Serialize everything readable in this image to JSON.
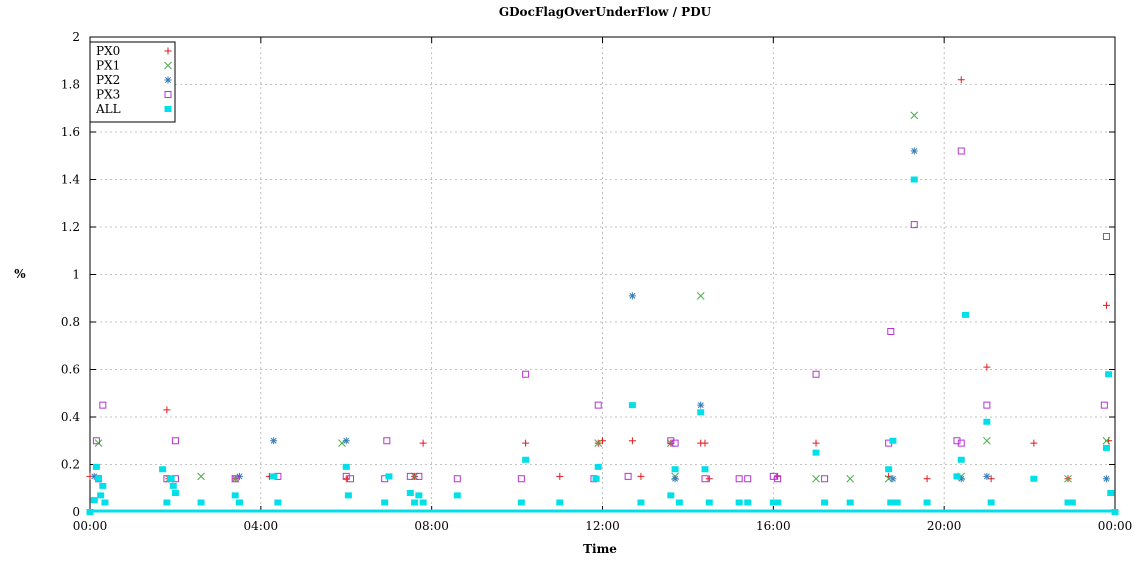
{
  "chart_data": {
    "type": "scatter",
    "title": "GDocFlagOverUnderFlow / PDU",
    "xlabel": "Time",
    "ylabel": "%",
    "xlim_hours": [
      0,
      24
    ],
    "ylim": [
      0,
      2
    ],
    "x_ticks": [
      "00:00",
      "04:00",
      "08:00",
      "12:00",
      "16:00",
      "20:00",
      "00:00"
    ],
    "y_ticks": [
      "0",
      "0.2",
      "0.4",
      "0.6",
      "0.8",
      "1",
      "1.2",
      "1.4",
      "1.6",
      "1.8",
      "2"
    ],
    "grid": true,
    "legend_position": "top-left",
    "series": [
      {
        "name": "PX0",
        "marker": "plus",
        "color": "#e41a1c",
        "points": [
          [
            0.0,
            0.15
          ],
          [
            0.2,
            0.14
          ],
          [
            1.8,
            0.43
          ],
          [
            1.85,
            0.14
          ],
          [
            3.4,
            0.14
          ],
          [
            4.2,
            0.15
          ],
          [
            6.0,
            0.14
          ],
          [
            7.6,
            0.15
          ],
          [
            7.8,
            0.29
          ],
          [
            10.2,
            0.29
          ],
          [
            11.0,
            0.15
          ],
          [
            11.9,
            0.29
          ],
          [
            12.0,
            0.3
          ],
          [
            12.7,
            0.3
          ],
          [
            12.9,
            0.15
          ],
          [
            13.6,
            0.29
          ],
          [
            14.3,
            0.29
          ],
          [
            14.4,
            0.29
          ],
          [
            14.5,
            0.14
          ],
          [
            16.1,
            0.15
          ],
          [
            17.0,
            0.29
          ],
          [
            18.7,
            0.15
          ],
          [
            19.6,
            0.14
          ],
          [
            20.4,
            1.82
          ],
          [
            21.0,
            0.61
          ],
          [
            21.1,
            0.14
          ],
          [
            22.1,
            0.29
          ],
          [
            22.9,
            0.14
          ],
          [
            23.8,
            0.87
          ],
          [
            23.85,
            0.3
          ]
        ]
      },
      {
        "name": "PX1",
        "marker": "x",
        "color": "#4daf4a",
        "points": [
          [
            0.2,
            0.29
          ],
          [
            1.85,
            0.14
          ],
          [
            2.6,
            0.15
          ],
          [
            3.4,
            0.14
          ],
          [
            5.9,
            0.29
          ],
          [
            7.6,
            0.15
          ],
          [
            11.9,
            0.29
          ],
          [
            13.6,
            0.29
          ],
          [
            13.7,
            0.15
          ],
          [
            14.3,
            0.91
          ],
          [
            17.0,
            0.14
          ],
          [
            17.8,
            0.14
          ],
          [
            18.7,
            0.14
          ],
          [
            19.3,
            1.67
          ],
          [
            20.4,
            0.15
          ],
          [
            21.0,
            0.3
          ],
          [
            22.9,
            0.14
          ],
          [
            23.8,
            0.3
          ]
        ]
      },
      {
        "name": "PX2",
        "marker": "star",
        "color": "#377eb8",
        "points": [
          [
            0.1,
            0.15
          ],
          [
            3.5,
            0.15
          ],
          [
            4.3,
            0.3
          ],
          [
            6.0,
            0.3
          ],
          [
            12.7,
            0.91
          ],
          [
            13.7,
            0.14
          ],
          [
            14.3,
            0.45
          ],
          [
            18.8,
            0.14
          ],
          [
            19.3,
            1.52
          ],
          [
            20.4,
            0.14
          ],
          [
            21.0,
            0.15
          ],
          [
            23.8,
            0.14
          ]
        ]
      },
      {
        "name": "PX3",
        "marker": "square",
        "color": "#b833d6",
        "points": [
          [
            0.15,
            0.3
          ],
          [
            0.2,
            0.14
          ],
          [
            0.3,
            0.45
          ],
          [
            1.8,
            0.14
          ],
          [
            2.0,
            0.14
          ],
          [
            2.0,
            0.3
          ],
          [
            3.4,
            0.14
          ],
          [
            4.4,
            0.15
          ],
          [
            6.0,
            0.15
          ],
          [
            6.1,
            0.14
          ],
          [
            6.9,
            0.14
          ],
          [
            6.95,
            0.3
          ],
          [
            7.5,
            0.15
          ],
          [
            7.7,
            0.15
          ],
          [
            8.6,
            0.14
          ],
          [
            10.1,
            0.14
          ],
          [
            10.2,
            0.58
          ],
          [
            11.9,
            0.45
          ],
          [
            11.8,
            0.14
          ],
          [
            12.6,
            0.15
          ],
          [
            13.6,
            0.3
          ],
          [
            13.7,
            0.29
          ],
          [
            14.4,
            0.14
          ],
          [
            15.2,
            0.14
          ],
          [
            15.4,
            0.14
          ],
          [
            16.0,
            0.15
          ],
          [
            16.1,
            0.14
          ],
          [
            17.0,
            0.58
          ],
          [
            17.2,
            0.14
          ],
          [
            18.7,
            0.29
          ],
          [
            18.75,
            0.76
          ],
          [
            19.3,
            1.21
          ],
          [
            20.3,
            0.3
          ],
          [
            20.4,
            0.29
          ],
          [
            20.4,
            1.52
          ],
          [
            21.0,
            0.45
          ],
          [
            23.8,
            1.16
          ],
          [
            23.75,
            0.45
          ]
        ]
      },
      {
        "name": "ALL",
        "marker": "filled-square",
        "color": "#00e0e8",
        "points": [
          [
            0.0,
            0.0
          ],
          [
            0.1,
            0.05
          ],
          [
            0.15,
            0.19
          ],
          [
            0.2,
            0.14
          ],
          [
            0.25,
            0.07
          ],
          [
            0.3,
            0.11
          ],
          [
            0.35,
            0.04
          ],
          [
            1.7,
            0.18
          ],
          [
            1.8,
            0.04
          ],
          [
            1.9,
            0.14
          ],
          [
            1.95,
            0.11
          ],
          [
            2.0,
            0.08
          ],
          [
            2.6,
            0.04
          ],
          [
            3.4,
            0.07
          ],
          [
            3.5,
            0.04
          ],
          [
            4.3,
            0.15
          ],
          [
            4.4,
            0.04
          ],
          [
            6.0,
            0.19
          ],
          [
            6.05,
            0.07
          ],
          [
            6.9,
            0.04
          ],
          [
            7.0,
            0.15
          ],
          [
            7.5,
            0.08
          ],
          [
            7.6,
            0.04
          ],
          [
            7.7,
            0.07
          ],
          [
            7.8,
            0.04
          ],
          [
            8.6,
            0.07
          ],
          [
            10.1,
            0.04
          ],
          [
            10.2,
            0.22
          ],
          [
            11.0,
            0.04
          ],
          [
            11.9,
            0.19
          ],
          [
            11.85,
            0.14
          ],
          [
            12.7,
            0.45
          ],
          [
            12.9,
            0.04
          ],
          [
            13.6,
            0.07
          ],
          [
            13.7,
            0.18
          ],
          [
            13.8,
            0.04
          ],
          [
            14.3,
            0.42
          ],
          [
            14.4,
            0.18
          ],
          [
            14.5,
            0.04
          ],
          [
            15.2,
            0.04
          ],
          [
            15.4,
            0.04
          ],
          [
            16.0,
            0.04
          ],
          [
            16.1,
            0.04
          ],
          [
            17.0,
            0.25
          ],
          [
            17.2,
            0.04
          ],
          [
            17.8,
            0.04
          ],
          [
            18.7,
            0.18
          ],
          [
            18.75,
            0.04
          ],
          [
            18.8,
            0.3
          ],
          [
            18.9,
            0.04
          ],
          [
            19.3,
            1.4
          ],
          [
            19.6,
            0.04
          ],
          [
            20.3,
            0.15
          ],
          [
            20.4,
            0.22
          ],
          [
            20.5,
            0.83
          ],
          [
            21.0,
            0.38
          ],
          [
            21.1,
            0.04
          ],
          [
            22.1,
            0.14
          ],
          [
            22.9,
            0.04
          ],
          [
            23.0,
            0.04
          ],
          [
            23.8,
            0.27
          ],
          [
            23.85,
            0.58
          ],
          [
            23.9,
            0.08
          ],
          [
            24.0,
            0.0
          ]
        ]
      }
    ]
  }
}
